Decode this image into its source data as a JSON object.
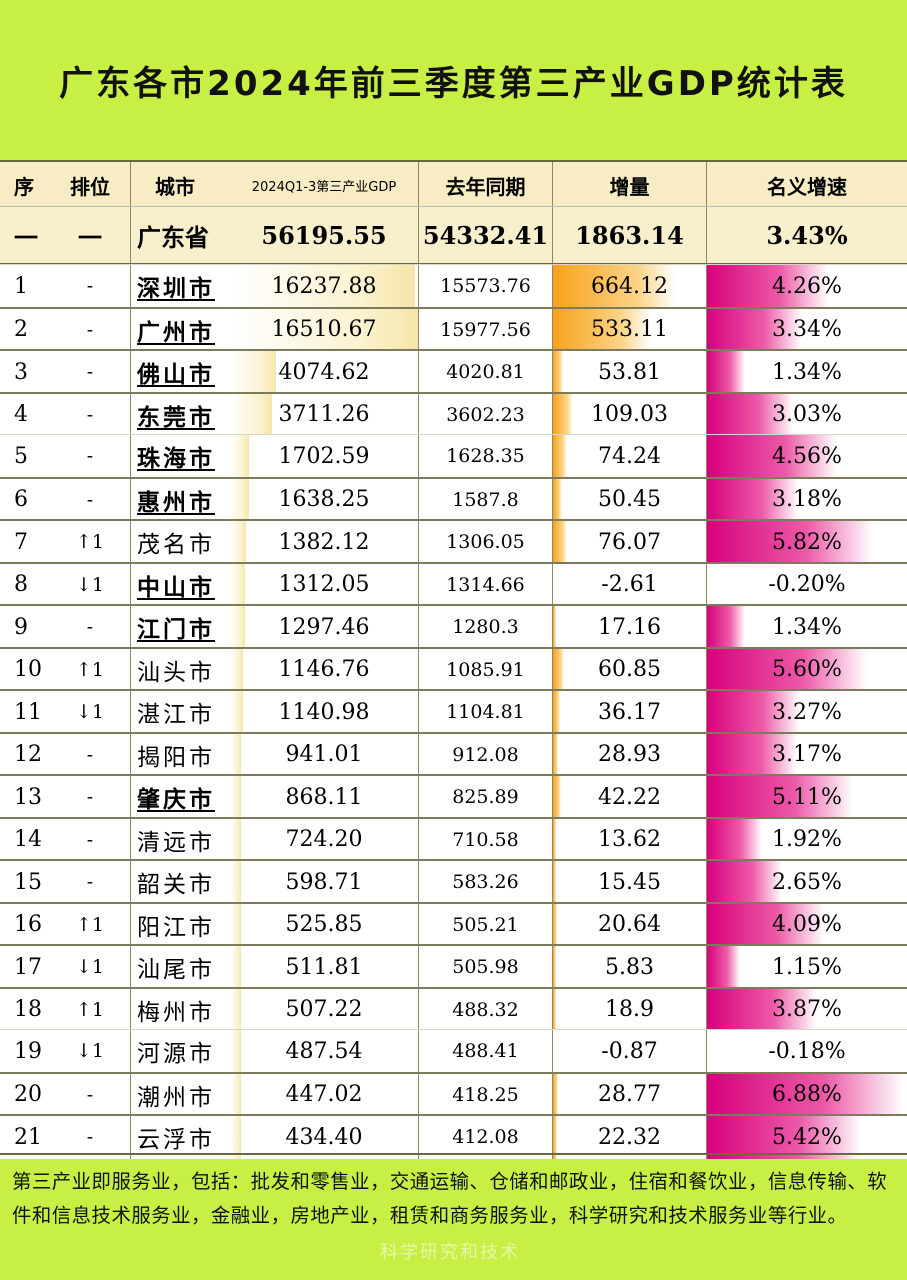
{
  "title": "广东各市2024年前三季度第三产业GDP统计表",
  "headers": {
    "seq": "序",
    "rank": "排位",
    "city": "城市",
    "gdp": "2024Q1-3第三产业GDP",
    "prev": "去年同期",
    "increase": "增量",
    "rate": "名义增速"
  },
  "province": {
    "seq": "一",
    "rank": "一",
    "city": "广东省",
    "gdp": "56195.55",
    "prev": "54332.41",
    "increase": "1863.14",
    "rate": "3.43%"
  },
  "rows": [
    {
      "seq": "1",
      "rank": "-",
      "city": "深圳市",
      "gdp": "16237.88",
      "prev": "15573.76",
      "increase": "664.12",
      "rate": "4.26%",
      "bold": true
    },
    {
      "seq": "2",
      "rank": "-",
      "city": "广州市",
      "gdp": "16510.67",
      "prev": "15977.56",
      "increase": "533.11",
      "rate": "3.34%",
      "bold": true
    },
    {
      "seq": "3",
      "rank": "-",
      "city": "佛山市",
      "gdp": "4074.62",
      "prev": "4020.81",
      "increase": "53.81",
      "rate": "1.34%",
      "bold": true
    },
    {
      "seq": "4",
      "rank": "-",
      "city": "东莞市",
      "gdp": "3711.26",
      "prev": "3602.23",
      "increase": "109.03",
      "rate": "3.03%",
      "bold": true
    },
    {
      "seq": "5",
      "rank": "-",
      "city": "珠海市",
      "gdp": "1702.59",
      "prev": "1628.35",
      "increase": "74.24",
      "rate": "4.56%",
      "bold": true
    },
    {
      "seq": "6",
      "rank": "-",
      "city": "惠州市",
      "gdp": "1638.25",
      "prev": "1587.8",
      "increase": "50.45",
      "rate": "3.18%",
      "bold": true
    },
    {
      "seq": "7",
      "rank": "↑1",
      "city": "茂名市",
      "gdp": "1382.12",
      "prev": "1306.05",
      "increase": "76.07",
      "rate": "5.82%",
      "bold": false
    },
    {
      "seq": "8",
      "rank": "↓1",
      "city": "中山市",
      "gdp": "1312.05",
      "prev": "1314.66",
      "increase": "-2.61",
      "rate": "-0.20%",
      "bold": true
    },
    {
      "seq": "9",
      "rank": "-",
      "city": "江门市",
      "gdp": "1297.46",
      "prev": "1280.3",
      "increase": "17.16",
      "rate": "1.34%",
      "bold": true
    },
    {
      "seq": "10",
      "rank": "↑1",
      "city": "汕头市",
      "gdp": "1146.76",
      "prev": "1085.91",
      "increase": "60.85",
      "rate": "5.60%",
      "bold": false
    },
    {
      "seq": "11",
      "rank": "↓1",
      "city": "湛江市",
      "gdp": "1140.98",
      "prev": "1104.81",
      "increase": "36.17",
      "rate": "3.27%",
      "bold": false
    },
    {
      "seq": "12",
      "rank": "-",
      "city": "揭阳市",
      "gdp": "941.01",
      "prev": "912.08",
      "increase": "28.93",
      "rate": "3.17%",
      "bold": false
    },
    {
      "seq": "13",
      "rank": "-",
      "city": "肇庆市",
      "gdp": "868.11",
      "prev": "825.89",
      "increase": "42.22",
      "rate": "5.11%",
      "bold": true
    },
    {
      "seq": "14",
      "rank": "-",
      "city": "清远市",
      "gdp": "724.20",
      "prev": "710.58",
      "increase": "13.62",
      "rate": "1.92%",
      "bold": false
    },
    {
      "seq": "15",
      "rank": "-",
      "city": "韶关市",
      "gdp": "598.71",
      "prev": "583.26",
      "increase": "15.45",
      "rate": "2.65%",
      "bold": false
    },
    {
      "seq": "16",
      "rank": "↑1",
      "city": "阳江市",
      "gdp": "525.85",
      "prev": "505.21",
      "increase": "20.64",
      "rate": "4.09%",
      "bold": false
    },
    {
      "seq": "17",
      "rank": "↓1",
      "city": "汕尾市",
      "gdp": "511.81",
      "prev": "505.98",
      "increase": "5.83",
      "rate": "1.15%",
      "bold": false
    },
    {
      "seq": "18",
      "rank": "↑1",
      "city": "梅州市",
      "gdp": "507.22",
      "prev": "488.32",
      "increase": "18.9",
      "rate": "3.87%",
      "bold": false
    },
    {
      "seq": "19",
      "rank": "↓1",
      "city": "河源市",
      "gdp": "487.54",
      "prev": "488.41",
      "increase": "-0.87",
      "rate": "-0.18%",
      "bold": false
    },
    {
      "seq": "20",
      "rank": "-",
      "city": "潮州市",
      "gdp": "447.02",
      "prev": "418.25",
      "increase": "28.77",
      "rate": "6.88%",
      "bold": false
    },
    {
      "seq": "21",
      "rank": "-",
      "city": "云浮市",
      "gdp": "434.40",
      "prev": "412.08",
      "increase": "22.32",
      "rate": "5.42%",
      "bold": false
    }
  ],
  "footer": "第三产业即服务业，包括：批发和零售业，交通运输、仓储和邮政业，住宿和餐饮业，信息传输、软件和信息技术服务业，金融业，房地产业，租赁和商务服务业，科学研究和技术服务业等行业。",
  "watermark": "科学研究和技术",
  "colors": {
    "background": "#c8f044",
    "increase_bar": "#f7a21a",
    "rate_bar": "#d8007d",
    "header_bg": "#f7ecc4"
  }
}
